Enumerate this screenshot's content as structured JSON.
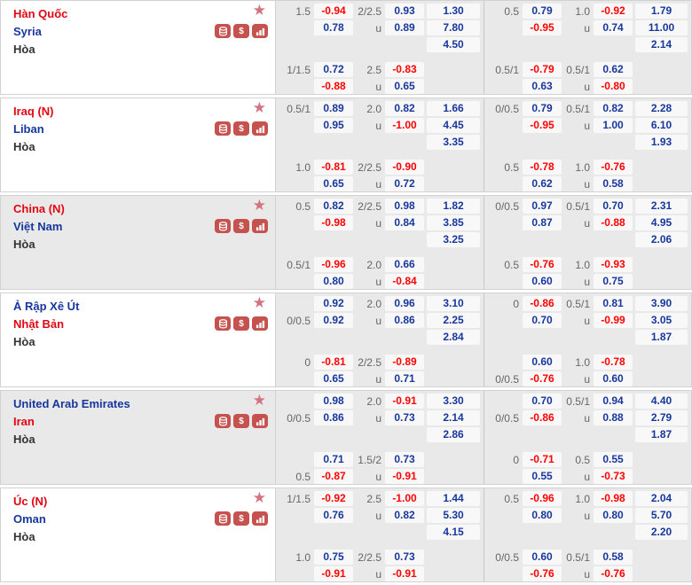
{
  "labels": {
    "draw": "Hòa",
    "under": "u"
  },
  "icons": {
    "favorite_star": "★",
    "dollar": "$"
  },
  "colors": {
    "team_red": "#e20613",
    "team_blue": "#17379c",
    "odds_red": "#ff0000",
    "odds_blue": "#17379c",
    "icon_bg": "#c5524e",
    "star": "#d4737f",
    "row_bg": "#e9e9e9",
    "pill_bg": "#f8f8f8",
    "border": "#d2d2d2"
  },
  "matches": [
    {
      "home": {
        "name": "Hàn Quốc",
        "color": "red"
      },
      "away": {
        "name": "Syria",
        "color": "blue"
      },
      "draw": "Hòa",
      "highlighted": false,
      "groups": [
        {
          "ft": {
            "hc": {
              "label": "1.5",
              "line": 1,
              "odds": [
                "-0.94",
                "0.78"
              ]
            },
            "ou": {
              "label": "2/2.5",
              "odds": [
                "0.93",
                "0.89"
              ]
            },
            "x12": [
              "1.30",
              "7.80",
              "4.50"
            ]
          },
          "hf": {
            "hc": {
              "label": "1/1.5",
              "line": 1,
              "odds": [
                "0.72",
                "-0.88"
              ]
            },
            "ou": {
              "label": "2.5",
              "odds": [
                "-0.83",
                "0.65"
              ]
            }
          }
        },
        {
          "ft": {
            "hc": {
              "label": "0.5",
              "line": 1,
              "odds": [
                "0.79",
                "-0.95"
              ]
            },
            "ou": {
              "label": "1.0",
              "odds": [
                "-0.92",
                "0.74"
              ]
            },
            "x12": [
              "1.79",
              "11.00",
              "2.14"
            ]
          },
          "hf": {
            "hc": {
              "label": "0.5/1",
              "line": 1,
              "odds": [
                "-0.79",
                "0.63"
              ]
            },
            "ou": {
              "label": "0.5/1",
              "odds": [
                "0.62",
                "-0.80"
              ]
            }
          }
        }
      ]
    },
    {
      "home": {
        "name": "Iraq (N)",
        "color": "red"
      },
      "away": {
        "name": "Liban",
        "color": "blue"
      },
      "draw": "Hòa",
      "highlighted": false,
      "groups": [
        {
          "ft": {
            "hc": {
              "label": "0.5/1",
              "line": 1,
              "odds": [
                "0.89",
                "0.95"
              ]
            },
            "ou": {
              "label": "2.0",
              "odds": [
                "0.82",
                "-1.00"
              ]
            },
            "x12": [
              "1.66",
              "4.45",
              "3.35"
            ]
          },
          "hf": {
            "hc": {
              "label": "1.0",
              "line": 1,
              "odds": [
                "-0.81",
                "0.65"
              ]
            },
            "ou": {
              "label": "2/2.5",
              "odds": [
                "-0.90",
                "0.72"
              ]
            }
          }
        },
        {
          "ft": {
            "hc": {
              "label": "0/0.5",
              "line": 1,
              "odds": [
                "0.79",
                "-0.95"
              ]
            },
            "ou": {
              "label": "0.5/1",
              "odds": [
                "0.82",
                "1.00"
              ]
            },
            "x12": [
              "2.28",
              "6.10",
              "1.93"
            ]
          },
          "hf": {
            "hc": {
              "label": "0.5",
              "line": 1,
              "odds": [
                "-0.78",
                "0.62"
              ]
            },
            "ou": {
              "label": "1.0",
              "odds": [
                "-0.76",
                "0.58"
              ]
            }
          }
        }
      ]
    },
    {
      "home": {
        "name": "China (N)",
        "color": "red"
      },
      "away": {
        "name": "Việt Nam",
        "color": "blue"
      },
      "draw": "Hòa",
      "highlighted": true,
      "groups": [
        {
          "ft": {
            "hc": {
              "label": "0.5",
              "line": 1,
              "odds": [
                "0.82",
                "-0.98"
              ]
            },
            "ou": {
              "label": "2/2.5",
              "odds": [
                "0.98",
                "0.84"
              ]
            },
            "x12": [
              "1.82",
              "3.85",
              "3.25"
            ]
          },
          "hf": {
            "hc": {
              "label": "0.5/1",
              "line": 1,
              "odds": [
                "-0.96",
                "0.80"
              ]
            },
            "ou": {
              "label": "2.0",
              "odds": [
                "0.66",
                "-0.84"
              ]
            }
          }
        },
        {
          "ft": {
            "hc": {
              "label": "0/0.5",
              "line": 1,
              "odds": [
                "0.97",
                "0.87"
              ]
            },
            "ou": {
              "label": "0.5/1",
              "odds": [
                "0.70",
                "-0.88"
              ]
            },
            "x12": [
              "2.31",
              "4.95",
              "2.06"
            ]
          },
          "hf": {
            "hc": {
              "label": "0.5",
              "line": 1,
              "odds": [
                "-0.76",
                "0.60"
              ]
            },
            "ou": {
              "label": "1.0",
              "odds": [
                "-0.93",
                "0.75"
              ]
            }
          }
        }
      ]
    },
    {
      "home": {
        "name": "Ả Rập Xê Út",
        "color": "blue"
      },
      "away": {
        "name": "Nhật Bản",
        "color": "red"
      },
      "draw": "Hòa",
      "highlighted": false,
      "groups": [
        {
          "ft": {
            "hc": {
              "label": "0/0.5",
              "line": 2,
              "odds": [
                "0.92",
                "0.92"
              ]
            },
            "ou": {
              "label": "2.0",
              "odds": [
                "0.96",
                "0.86"
              ]
            },
            "x12": [
              "3.10",
              "2.25",
              "2.84"
            ]
          },
          "hf": {
            "hc": {
              "label": "0",
              "line": 1,
              "odds": [
                "-0.81",
                "0.65"
              ]
            },
            "ou": {
              "label": "2/2.5",
              "odds": [
                "-0.89",
                "0.71"
              ]
            }
          }
        },
        {
          "ft": {
            "hc": {
              "label": "0",
              "line": 1,
              "odds": [
                "-0.86",
                "0.70"
              ]
            },
            "ou": {
              "label": "0.5/1",
              "odds": [
                "0.81",
                "-0.99"
              ]
            },
            "x12": [
              "3.90",
              "3.05",
              "1.87"
            ]
          },
          "hf": {
            "hc": {
              "label": "0/0.5",
              "line": 2,
              "odds": [
                "0.60",
                "-0.76"
              ]
            },
            "ou": {
              "label": "1.0",
              "odds": [
                "-0.78",
                "0.60"
              ]
            }
          }
        }
      ]
    },
    {
      "home": {
        "name": "United Arab Emirates",
        "color": "blue"
      },
      "away": {
        "name": "Iran",
        "color": "red"
      },
      "draw": "Hòa",
      "highlighted": true,
      "groups": [
        {
          "ft": {
            "hc": {
              "label": "0/0.5",
              "line": 2,
              "odds": [
                "0.98",
                "0.86"
              ]
            },
            "ou": {
              "label": "2.0",
              "odds": [
                "-0.91",
                "0.73"
              ]
            },
            "x12": [
              "3.30",
              "2.14",
              "2.86"
            ]
          },
          "hf": {
            "hc": {
              "label": "0.5",
              "line": 2,
              "odds": [
                "0.71",
                "-0.87"
              ]
            },
            "ou": {
              "label": "1.5/2",
              "odds": [
                "0.73",
                "-0.91"
              ]
            }
          }
        },
        {
          "ft": {
            "hc": {
              "label": "0/0.5",
              "line": 2,
              "odds": [
                "0.70",
                "-0.86"
              ]
            },
            "ou": {
              "label": "0.5/1",
              "odds": [
                "0.94",
                "0.88"
              ]
            },
            "x12": [
              "4.40",
              "2.79",
              "1.87"
            ]
          },
          "hf": {
            "hc": {
              "label": "0",
              "line": 1,
              "odds": [
                "-0.71",
                "0.55"
              ]
            },
            "ou": {
              "label": "0.5",
              "odds": [
                "0.55",
                "-0.73"
              ]
            }
          }
        }
      ]
    },
    {
      "home": {
        "name": "Úc (N)",
        "color": "red"
      },
      "away": {
        "name": "Oman",
        "color": "blue"
      },
      "draw": "Hòa",
      "highlighted": false,
      "groups": [
        {
          "ft": {
            "hc": {
              "label": "1/1.5",
              "line": 1,
              "odds": [
                "-0.92",
                "0.76"
              ]
            },
            "ou": {
              "label": "2.5",
              "odds": [
                "-1.00",
                "0.82"
              ]
            },
            "x12": [
              "1.44",
              "5.30",
              "4.15"
            ]
          },
          "hf": {
            "hc": {
              "label": "1.0",
              "line": 1,
              "odds": [
                "0.75",
                "-0.91"
              ]
            },
            "ou": {
              "label": "2/2.5",
              "odds": [
                "0.73",
                "-0.91"
              ]
            }
          }
        },
        {
          "ft": {
            "hc": {
              "label": "0.5",
              "line": 1,
              "odds": [
                "-0.96",
                "0.80"
              ]
            },
            "ou": {
              "label": "1.0",
              "odds": [
                "-0.98",
                "0.80"
              ]
            },
            "x12": [
              "2.04",
              "5.70",
              "2.20"
            ]
          },
          "hf": {
            "hc": {
              "label": "0/0.5",
              "line": 1,
              "odds": [
                "0.60",
                "-0.76"
              ]
            },
            "ou": {
              "label": "0.5/1",
              "odds": [
                "0.58",
                "-0.76"
              ]
            }
          }
        }
      ]
    }
  ]
}
